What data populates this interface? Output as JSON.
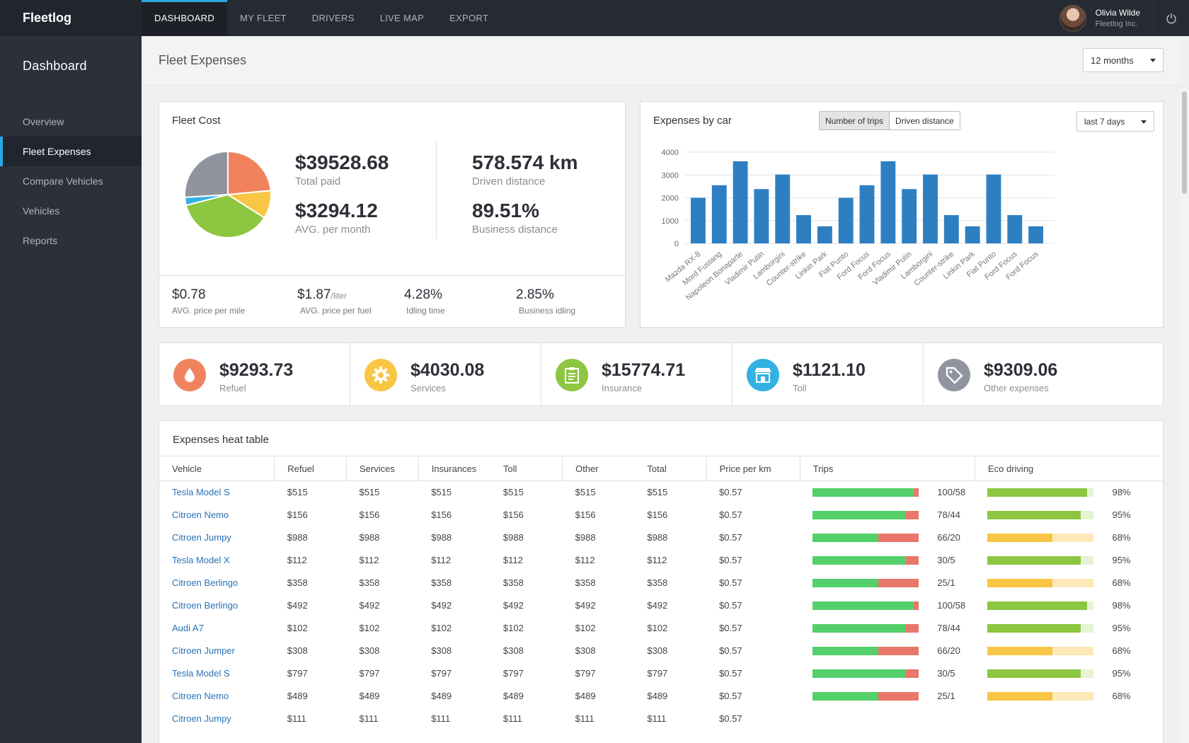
{
  "app": {
    "brand": "Fleetlog"
  },
  "nav": {
    "tabs": [
      {
        "label": "DASHBOARD",
        "active": true
      },
      {
        "label": "MY FLEET"
      },
      {
        "label": "DRIVERS"
      },
      {
        "label": "LIVE MAP"
      },
      {
        "label": "EXPORT"
      }
    ]
  },
  "user": {
    "name": "Olivia Wilde",
    "company": "Fleetlog Inc."
  },
  "sidebar": {
    "title": "Dashboard",
    "items": [
      {
        "label": "Overview"
      },
      {
        "label": "Fleet Expenses",
        "active": true
      },
      {
        "label": "Compare Vehicles"
      },
      {
        "label": "Vehicles"
      },
      {
        "label": "Reports"
      }
    ]
  },
  "page": {
    "title": "Fleet Expenses",
    "period": "12 months"
  },
  "fleet_cost": {
    "title": "Fleet Cost",
    "total_paid": {
      "value": "$39528.68",
      "label": "Total paid"
    },
    "avg_month": {
      "value": "$3294.12",
      "label": "AVG. per month"
    },
    "driven": {
      "value": "578.574 km",
      "label": "Driven distance"
    },
    "business": {
      "value": "89.51%",
      "label": "Business distance"
    },
    "footer": [
      {
        "value": "$0.78",
        "unit": "",
        "label": "AVG. price per mile"
      },
      {
        "value": "$1.87",
        "unit": "/liter",
        "label": "AVG. price per fuel"
      },
      {
        "value": "4.28%",
        "unit": "",
        "label": "Idling time"
      },
      {
        "value": "2.85%",
        "unit": "",
        "label": "Business idling"
      }
    ]
  },
  "pie_chart": {
    "type": "pie",
    "slices": [
      {
        "value": 23.5,
        "color": "#f0835e"
      },
      {
        "value": 10.5,
        "color": "#f8c644"
      },
      {
        "value": 37,
        "color": "#8dc641"
      },
      {
        "value": 3,
        "color": "#33b1e3"
      },
      {
        "value": 26,
        "color": "#8f949e"
      }
    ]
  },
  "expenses_by_car": {
    "title": "Expenses by car",
    "toggle": {
      "a": "Number of trips",
      "b": "Driven distance"
    },
    "range": "last 7 days"
  },
  "chart_data": {
    "type": "bar",
    "categories": [
      "Mazda RX-8",
      "Mord Fustang",
      "Napoleon Bonaparte",
      "Vladimir Putin",
      "Lamborgini",
      "Counter-strike",
      "Linkin Park",
      "Fiat Punto",
      "Ford Focus",
      "Ford Focus",
      "Vladimir Putin",
      "Lamborgini",
      "Counter-strike",
      "Linkin Park",
      "Fiat Punto",
      "Ford Focus",
      "Ford Focus"
    ],
    "values": [
      2000,
      2550,
      3600,
      2380,
      3020,
      1240,
      750,
      2000,
      2550,
      3600,
      2380,
      3020,
      1240,
      750,
      3020,
      1240,
      750
    ],
    "ylim": [
      0,
      4000
    ],
    "yticks": [
      "0",
      "1000",
      "2000",
      "3000",
      "4000"
    ],
    "color": "#2e7fc2",
    "grid": true
  },
  "kpis": [
    {
      "value": "$9293.73",
      "label": "Refuel",
      "color": "#f0835e",
      "icon": "drop-icon"
    },
    {
      "value": "$4030.08",
      "label": "Services",
      "color": "#f8c644",
      "icon": "gear-icon"
    },
    {
      "value": "$15774.71",
      "label": "Insurance",
      "color": "#8dc641",
      "icon": "clipboard-icon"
    },
    {
      "value": "$1121.10",
      "label": "Toll",
      "color": "#33b1e3",
      "icon": "toll-booth-icon"
    },
    {
      "value": "$9309.06",
      "label": "Other expenses",
      "color": "#8f949e",
      "icon": "tag-icon"
    }
  ],
  "heat_table": {
    "title": "Expenses heat table",
    "columns": [
      "Vehicle",
      "Refuel",
      "Services",
      "Insurances",
      "Toll",
      "Other",
      "Total",
      "Price per km",
      "Trips",
      "Eco driving"
    ],
    "rows": [
      {
        "vehicle": "Tesla Model S",
        "v": "$515",
        "price": "$0.57",
        "trips": "100/58",
        "trips_pct": 95,
        "eco": "98%",
        "eco_pct": 94,
        "eco_color": "#8dc641",
        "eco_bg": "#e6f3d4"
      },
      {
        "vehicle": "Citroen Nemo",
        "v": "$156",
        "price": "$0.57",
        "trips": "78/44",
        "trips_pct": 88,
        "eco": "95%",
        "eco_pct": 88,
        "eco_color": "#8dc641",
        "eco_bg": "#e6f3d4"
      },
      {
        "vehicle": "Citroen Jumpy",
        "v": "$988",
        "price": "$0.57",
        "trips": "66/20",
        "trips_pct": 62,
        "eco": "68%",
        "eco_pct": 61,
        "eco_color": "#f8c644",
        "eco_bg": "#fde9b8"
      },
      {
        "vehicle": "Tesla Model X",
        "v": "$112",
        "price": "$0.57",
        "trips": "30/5",
        "trips_pct": 88,
        "eco": "95%",
        "eco_pct": 88,
        "eco_color": "#8dc641",
        "eco_bg": "#e6f3d4"
      },
      {
        "vehicle": "Citroen Berlingo",
        "v": "$358",
        "price": "$0.57",
        "trips": "25/1",
        "trips_pct": 62,
        "eco": "68%",
        "eco_pct": 61,
        "eco_color": "#f8c644",
        "eco_bg": "#fde9b8"
      },
      {
        "vehicle": "Citroen Berlingo",
        "v": "$492",
        "price": "$0.57",
        "trips": "100/58",
        "trips_pct": 95,
        "eco": "98%",
        "eco_pct": 94,
        "eco_color": "#8dc641",
        "eco_bg": "#e6f3d4"
      },
      {
        "vehicle": "Audi A7",
        "v": "$102",
        "price": "$0.57",
        "trips": "78/44",
        "trips_pct": 88,
        "eco": "95%",
        "eco_pct": 88,
        "eco_color": "#8dc641",
        "eco_bg": "#e6f3d4"
      },
      {
        "vehicle": "Citroen Jumper",
        "v": "$308",
        "price": "$0.57",
        "trips": "66/20",
        "trips_pct": 62,
        "eco": "68%",
        "eco_pct": 61,
        "eco_color": "#f8c644",
        "eco_bg": "#fde9b8"
      },
      {
        "vehicle": "Tesla Model S",
        "v": "$797",
        "price": "$0.57",
        "trips": "30/5",
        "trips_pct": 88,
        "eco": "95%",
        "eco_pct": 88,
        "eco_color": "#8dc641",
        "eco_bg": "#e6f3d4"
      },
      {
        "vehicle": "Citroen Nemo",
        "v": "$489",
        "price": "$0.57",
        "trips": "25/1",
        "trips_pct": 62,
        "eco": "68%",
        "eco_pct": 61,
        "eco_color": "#f8c644",
        "eco_bg": "#fde9b8"
      },
      {
        "vehicle": "Citroen Jumpy",
        "v": "$111",
        "price": "$0.57",
        "trips": "",
        "trips_pct": null,
        "eco": "",
        "eco_pct": null
      }
    ]
  }
}
